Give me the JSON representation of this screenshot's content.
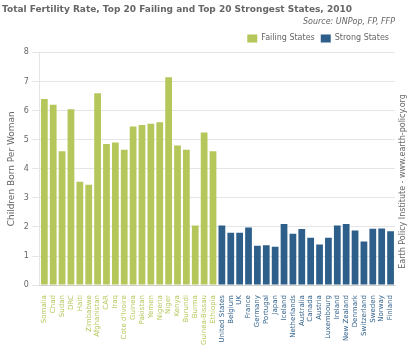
{
  "chart_data": {
    "type": "bar",
    "title": "Total Fertility Rate, Top 20 Failing and Top 20 Strongest States, 2010",
    "y_label": "Children Born Per Woman",
    "annotations": [
      "Source: UNPop, FP, FFP",
      "Earth Policy Institute - www.earth-policy.org"
    ],
    "categories": [
      "Somalia",
      "Chad",
      "Sudan",
      "DRC",
      "Haiti",
      "Zimbabwe",
      "Afghanistan",
      "CAR",
      "Iraq",
      "Cote d'Ivoire",
      "Guinea",
      "Pakistan",
      "Yemen",
      "Nigeria",
      "Niger",
      "Kenya",
      "Burundi",
      "Burma",
      "Guinea-Bissau",
      "Ethiopia",
      "United States",
      "Belgium",
      "UK",
      "France",
      "Germany",
      "Portugal",
      "Japan",
      "Iceland",
      "Netherlands",
      "Australia",
      "Canada",
      "Austria",
      "Luxembourg",
      "Ireland",
      "New Zealand",
      "Denmark",
      "Switzerland",
      "Sweden",
      "Norway",
      "Finland"
    ],
    "series": [
      {
        "name": "Failing States",
        "color": "#b5c65a",
        "values": [
          6.4,
          6.2,
          4.6,
          6.05,
          3.55,
          3.45,
          6.6,
          4.85,
          4.9,
          4.65,
          5.45,
          5.5,
          5.55,
          5.6,
          7.15,
          4.8,
          4.65,
          2.05,
          5.25,
          4.6,
          null,
          null,
          null,
          null,
          null,
          null,
          null,
          null,
          null,
          null,
          null,
          null,
          null,
          null,
          null,
          null,
          null,
          null,
          null,
          null
        ]
      },
      {
        "name": "Strong States",
        "color": "#2e5f8a",
        "values": [
          null,
          null,
          null,
          null,
          null,
          null,
          null,
          null,
          null,
          null,
          null,
          null,
          null,
          null,
          null,
          null,
          null,
          null,
          null,
          null,
          2.05,
          1.8,
          1.8,
          1.98,
          1.35,
          1.37,
          1.32,
          2.1,
          1.77,
          1.93,
          1.63,
          1.4,
          1.63,
          2.05,
          2.1,
          1.88,
          1.5,
          1.94,
          1.95,
          1.85
        ]
      }
    ],
    "ylim": [
      0,
      8
    ],
    "yticks": [
      0,
      1,
      2,
      3,
      4,
      5,
      6,
      7,
      8
    ],
    "grid": true,
    "legend": "upper right"
  }
}
